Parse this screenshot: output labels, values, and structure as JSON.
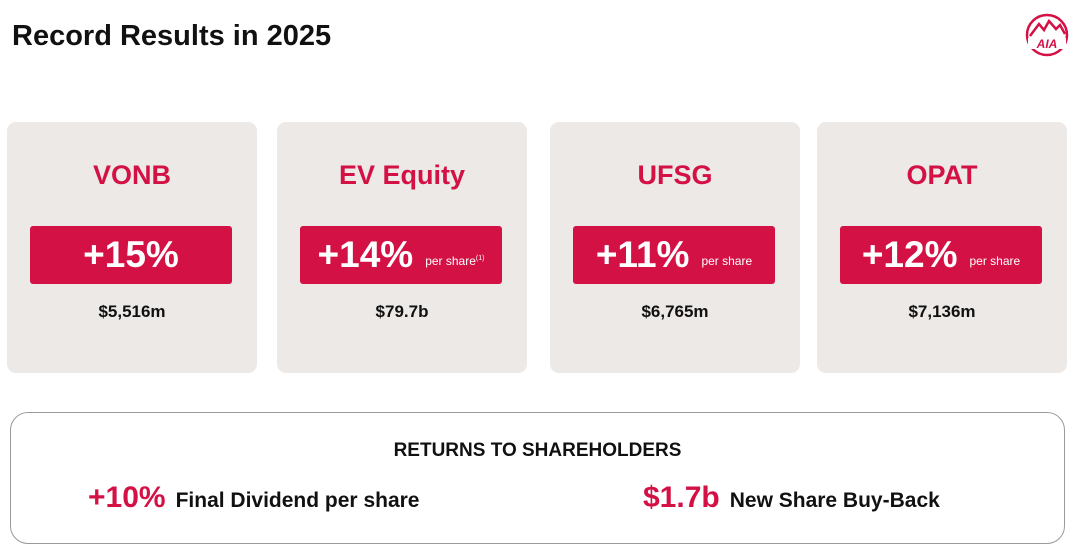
{
  "header": {
    "title": "Record Results in 2025",
    "logo": "AIA"
  },
  "cards": [
    {
      "title": "VONB",
      "growth": "+15%",
      "value": "$5,516m"
    },
    {
      "title": "EV Equity",
      "growth": "+14%",
      "basis": "per share",
      "note": "(1)",
      "value": "$79.7b"
    },
    {
      "title": "UFSG",
      "growth": "+11%",
      "basis": "per share",
      "value": "$6,765m"
    },
    {
      "title": "OPAT",
      "growth": "+12%",
      "basis": "per share",
      "value": "$7,136m"
    }
  ],
  "returns": {
    "title": "RETURNS TO SHAREHOLDERS",
    "items": [
      {
        "value": "+10%",
        "label": "Final Dividend per share"
      },
      {
        "value": "$1.7b",
        "label": "New Share Buy-Back"
      }
    ]
  }
}
